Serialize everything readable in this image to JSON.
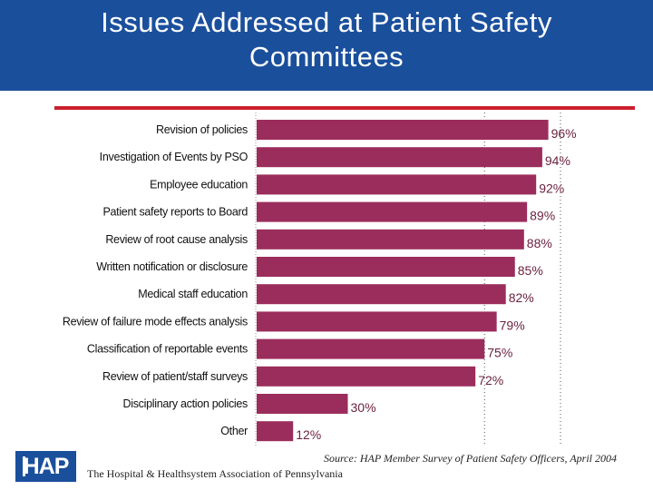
{
  "header": {
    "title_line1": "Issues Addressed at Patient Safety",
    "title_line2": "Committees"
  },
  "colors": {
    "header_bg": "#1a4f9c",
    "accent_line": "#cc1f2e",
    "bar": "#9b2d5c"
  },
  "chart_data": {
    "type": "bar",
    "orientation": "horizontal",
    "categories": [
      "Revision of policies",
      "Investigation of Events by PSO",
      "Employee education",
      "Patient safety reports to Board",
      "Review of root cause analysis",
      "Written notification or disclosure",
      "Medical staff education",
      "Review of failure mode effects analysis",
      "Classification of reportable events",
      "Review of patient/staff surveys",
      "Disciplinary action policies",
      "Other"
    ],
    "values": [
      96,
      94,
      92,
      89,
      88,
      85,
      82,
      79,
      75,
      72,
      30,
      12
    ],
    "value_labels": [
      "96%",
      "94%",
      "92%",
      "89%",
      "88%",
      "85%",
      "82%",
      "79%",
      "75%",
      "72%",
      "30%",
      "12%"
    ],
    "xlim": [
      0,
      100
    ],
    "grid": "dotted vertical lines",
    "legend": "none"
  },
  "footer": {
    "logo_text": "HAP",
    "source": "Source: HAP Member Survey of Patient Safety Officers, April 2004",
    "organization": "The Hospital & Healthsystem Association of Pennsylvania"
  }
}
